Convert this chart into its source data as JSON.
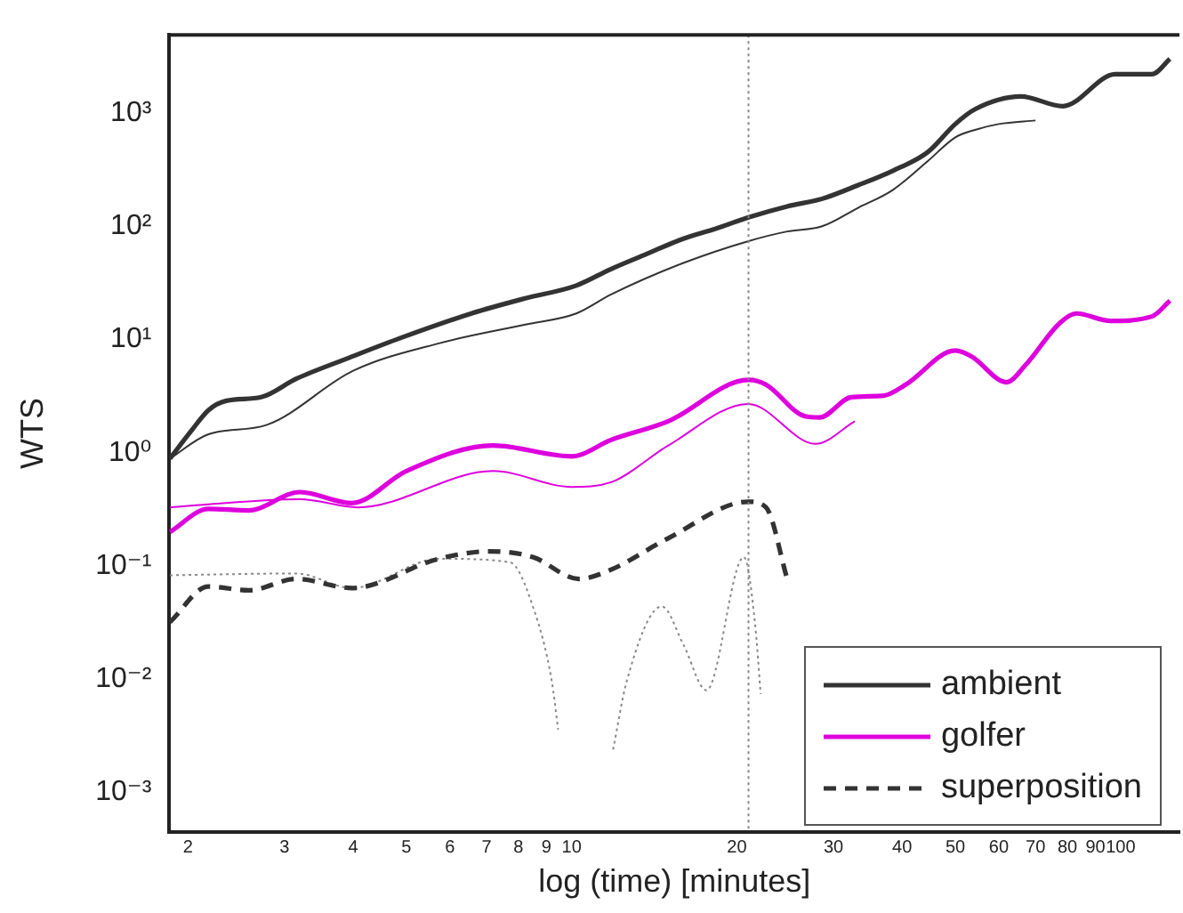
{
  "chart_data": {
    "type": "line",
    "xlabel": "log (time) [minutes]",
    "ylabel": "WTS",
    "log": "xy",
    "xlim": [
      1.85,
      128
    ],
    "ylim": [
      0.00045,
      4900
    ],
    "xticks": [
      2,
      3,
      4,
      5,
      6,
      7,
      8,
      9,
      10,
      20,
      30,
      40,
      50,
      60,
      70,
      80,
      90,
      100
    ],
    "yticks": [
      {
        "value": 0.001,
        "label": "10⁻³"
      },
      {
        "value": 0.01,
        "label": "10⁻²"
      },
      {
        "value": 0.1,
        "label": "10⁻¹"
      },
      {
        "value": 1,
        "label": "10⁰"
      },
      {
        "value": 10,
        "label": "10¹"
      },
      {
        "value": 100,
        "label": "10²"
      },
      {
        "value": 1000,
        "label": "10³"
      }
    ],
    "grid": false,
    "legend": "bottom right",
    "marker": "none",
    "ref_lines": [
      {
        "axis": "x",
        "value": 21,
        "color": "#888888",
        "line_style": "dotted"
      }
    ],
    "series": [
      {
        "name": "ambient",
        "color": "#333333",
        "line_style": "solid",
        "x": [
          1.855,
          2.03,
          2.18,
          2.35,
          2.72,
          3.15,
          3.93,
          4.9,
          6.57,
          8.2,
          10.2,
          11.8,
          13.7,
          15.9,
          18.4,
          21,
          24.7,
          28.6,
          33.2,
          38.5,
          44.5,
          50,
          54.3,
          65.8,
          78.5,
          97.8,
          114,
          123
        ],
        "values": [
          0.89,
          1.57,
          2.38,
          2.88,
          3.1,
          4.5,
          6.9,
          10.4,
          17,
          23,
          30,
          42,
          57,
          77,
          96,
          120,
          150,
          175,
          230,
          310,
          450,
          800,
          1080,
          1400,
          1150,
          2200,
          2200,
          3000
        ]
      },
      {
        "color": "#333333",
        "line_style": "solid",
        "x": [
          1.855,
          2.18,
          2.78,
          4.0,
          5.75,
          8.2,
          10.2,
          11.8,
          15.9,
          21,
          24.7,
          28.6,
          33.2,
          38.5,
          44.5,
          50,
          54.3,
          60,
          70
        ],
        "values": [
          0.89,
          1.46,
          1.76,
          5.3,
          9.3,
          13.5,
          17,
          25,
          47,
          74,
          90,
          100,
          145,
          210,
          375,
          610,
          710,
          800,
          860
        ]
      },
      {
        "name": "golfer",
        "color": "#dd00dd",
        "line_style": "solid",
        "x": [
          1.855,
          2.18,
          2.58,
          3.2,
          3.98,
          5.0,
          7.2,
          10.0,
          11.8,
          15.0,
          21,
          22.6,
          26.6,
          28.3,
          32.3,
          37,
          40.6,
          50,
          53.5,
          62,
          67,
          77.5,
          83,
          96,
          114,
          123
        ],
        "values": [
          0.2,
          0.32,
          0.31,
          0.45,
          0.36,
          0.69,
          1.16,
          0.93,
          1.3,
          1.9,
          4.4,
          4,
          2.1,
          2.05,
          3.1,
          3.2,
          4,
          8,
          7.1,
          4.2,
          5.9,
          14,
          17,
          14.6,
          16,
          22
        ]
      },
      {
        "color": "#dd00dd",
        "line_style": "solid",
        "x": [
          1.855,
          3.2,
          4.08,
          7.2,
          10.0,
          11.8,
          15.0,
          21,
          27.8,
          32.8
        ],
        "values": [
          0.33,
          0.39,
          0.33,
          0.69,
          0.5,
          0.55,
          1.16,
          2.7,
          1.2,
          1.9
        ]
      },
      {
        "name": "superposition",
        "color": "#333333",
        "line_style": "dashed",
        "x": [
          1.855,
          2.18,
          2.58,
          3.15,
          3.98,
          5.73,
          7.1,
          8.5,
          10.3,
          11.8,
          15.0,
          21,
          22.6,
          24.7
        ],
        "values": [
          0.032,
          0.066,
          0.061,
          0.077,
          0.064,
          0.116,
          0.135,
          0.12,
          0.077,
          0.093,
          0.176,
          0.37,
          0.33,
          0.077
        ]
      },
      {
        "color": "#888888",
        "line_style": "dotted",
        "x": [
          1.855,
          3.15,
          3.98,
          5.73,
          7.72,
          8.5,
          9.2,
          9.45,
          10.5,
          11.9,
          12.6,
          14.6,
          16.0,
          17.6,
          20.6,
          21.6,
          22.1
        ],
        "values": [
          0.083,
          0.086,
          0.064,
          0.116,
          0.108,
          0.044,
          0.0097,
          0.0036,
          null,
          0.0024,
          0.0096,
          0.044,
          0.02,
          0.008,
          0.12,
          0.03,
          0.0074
        ]
      }
    ]
  }
}
